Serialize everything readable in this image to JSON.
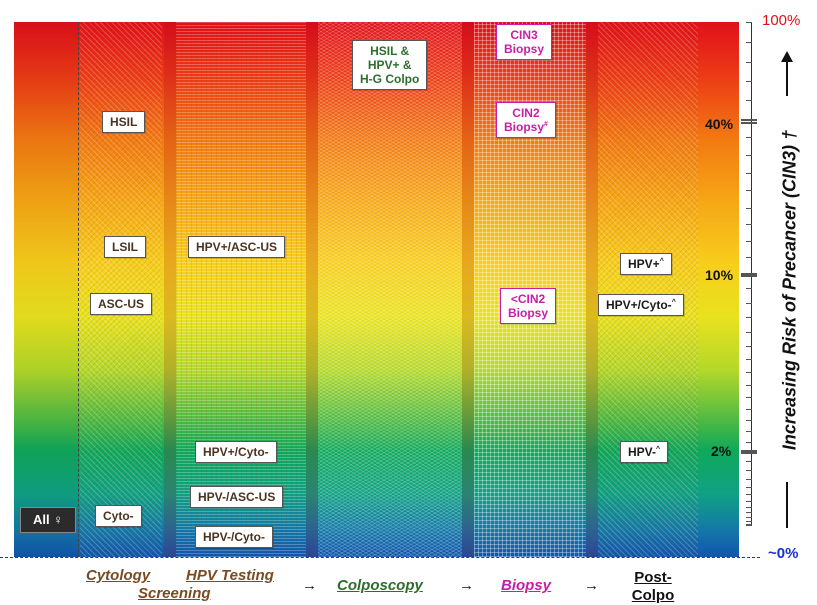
{
  "stages": {
    "cytology": "Cytology",
    "screening": "Screening",
    "hpv_testing": "HPV Testing",
    "colposcopy": "Colposcopy",
    "biopsy": "Biopsy",
    "post_colpo_1": "Post-",
    "post_colpo_2": "Colpo",
    "arrow": "→"
  },
  "cytology_boxes": {
    "hsil": "HSIL",
    "lsil": "LSIL",
    "ascus": "ASC-US",
    "cyto_neg": "Cyto-"
  },
  "hpv_boxes": {
    "hpv_pos_ascus": "HPV+/ASC-US",
    "hpv_pos_cyto_neg": "HPV+/Cyto-",
    "hpv_neg_ascus": "HPV-/ASC-US",
    "hpv_neg_cyto_neg": "HPV-/Cyto-"
  },
  "colpo_box": {
    "line1": "HSIL &",
    "line2": "HPV+ &",
    "line3": "H-G Colpo"
  },
  "biopsy_boxes": {
    "cin3_l1": "CIN3",
    "cin3_l2": "Biopsy",
    "cin2_l1": "CIN2",
    "cin2_l2": "Biopsy",
    "cin2_sup": "#",
    "lt_cin2_l1": "<CIN2",
    "lt_cin2_l2": "Biopsy"
  },
  "postcolpo_boxes": {
    "hpv_pos": "HPV+",
    "hpv_pos_cyto_neg": "HPV+/Cyto-",
    "hpv_neg": "HPV-",
    "sup": "^"
  },
  "all_women": "All ♀",
  "y_axis": {
    "label_100": "100%",
    "label_40": "40%",
    "label_10": "10%",
    "label_2": "2%",
    "label_0": "~0%",
    "title": "Increasing Risk of Precancer (CIN3)",
    "title_mark": " †"
  },
  "colors": {
    "top_red": "#e0101a",
    "bottom_blue": "#1255ad",
    "cytology_text": "#7a4a20",
    "colposcopy_text": "#2d6e2d",
    "biopsy_text": "#c81ea6",
    "zero_label": "#1a2fd0"
  }
}
